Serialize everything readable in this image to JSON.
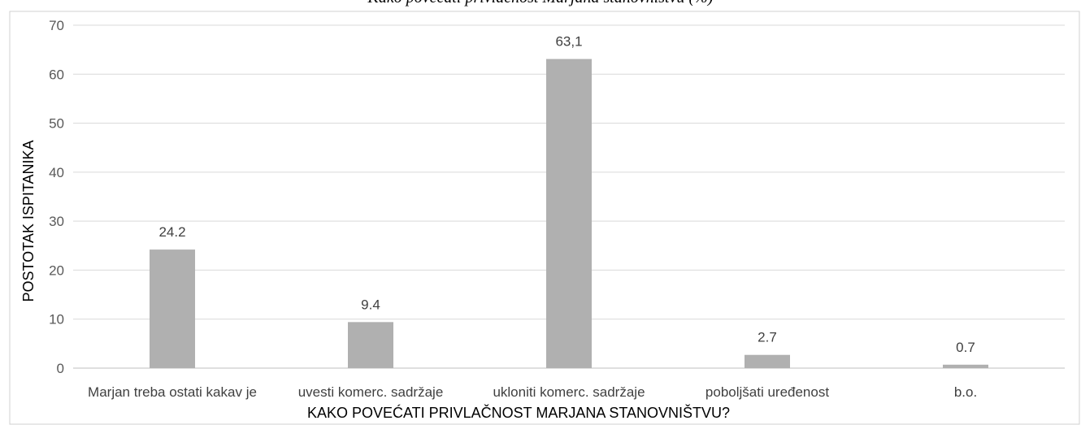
{
  "caption": "Kako povećati privlačnost Marjana stanovništvu (%)",
  "chart_data": {
    "type": "bar",
    "categories": [
      "Marjan treba ostati kakav je",
      "uvesti komerc. sadržaje",
      "ukloniti komerc. sadržaje",
      "poboljšati uređenost",
      "b.o."
    ],
    "values": [
      24.2,
      9.4,
      63.1,
      2.7,
      0.7
    ],
    "data_labels": [
      "24.2",
      "9.4",
      "63,1",
      "2.7",
      "0.7"
    ],
    "xlabel": "KAKO POVEĆATI PRIVLAČNOST MARJANA STANOVNIŠTVU?",
    "ylabel": "POSTOTAK ISPITANIKA",
    "ylim": [
      0,
      70
    ],
    "yticks": [
      0,
      10,
      20,
      30,
      40,
      50,
      60,
      70
    ],
    "grid": true,
    "bar_color": "#b0b0b0",
    "grid_color": "#d9d9d9"
  }
}
